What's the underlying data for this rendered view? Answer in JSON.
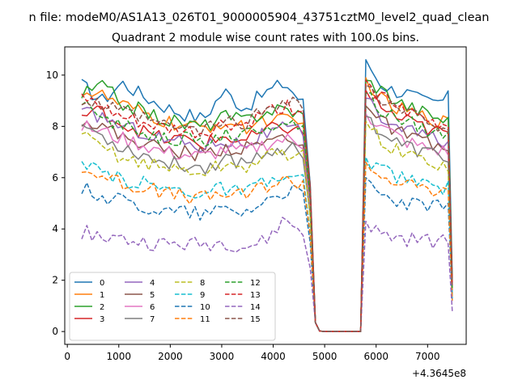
{
  "figure": {
    "suptitle": "n file: modeM0/AS1A13_026T01_9000005904_43751cztM0_level2_quad_clean"
  },
  "chart_data": {
    "type": "line",
    "title": "Quadrant 2 module wise count rates with 100.0s bins.",
    "xlabel": "",
    "ylabel": "",
    "x_offset_label": "+4.3645e8",
    "xlim": [
      -50,
      7750
    ],
    "ylim": [
      -0.5,
      11.1
    ],
    "xticks": [
      0,
      1000,
      2000,
      3000,
      4000,
      5000,
      6000,
      7000
    ],
    "xtick_labels": [
      "0",
      "1000",
      "2000",
      "3000",
      "4000",
      "5000",
      "6000",
      "7000"
    ],
    "yticks": [
      0,
      2,
      4,
      6,
      8,
      10
    ],
    "ytick_labels": [
      "0",
      "2",
      "4",
      "6",
      "8",
      "10"
    ],
    "grid": false,
    "legend": {
      "position": "lower-left",
      "columns": 4
    },
    "series": [
      {
        "name": "0",
        "color": "#1f77b4",
        "dash": "solid",
        "pre": [
          9.6,
          9.0,
          9.7,
          9.2,
          8.8,
          8.5,
          8.3,
          9.4,
          8.7,
          9.3,
          9.7,
          8.8
        ],
        "post": [
          10.6,
          9.7,
          9.4,
          9.3,
          9.0,
          8.9,
          9.1,
          2.1
        ]
      },
      {
        "name": "1",
        "color": "#ff7f0e",
        "dash": "solid",
        "pre": [
          9.4,
          9.2,
          8.8,
          8.5,
          8.2,
          8.0,
          7.9,
          8.2,
          7.9,
          8.3,
          8.2,
          8.0
        ],
        "post": [
          9.9,
          9.1,
          8.7,
          8.6,
          8.4,
          8.3,
          8.1,
          1.8
        ]
      },
      {
        "name": "2",
        "color": "#2ca02c",
        "dash": "solid",
        "pre": [
          9.2,
          9.6,
          8.9,
          8.6,
          8.3,
          8.1,
          8.0,
          8.4,
          8.2,
          8.6,
          8.7,
          8.4
        ],
        "post": [
          9.8,
          9.5,
          9.1,
          8.8,
          8.6,
          8.4,
          8.2,
          1.9
        ]
      },
      {
        "name": "3",
        "color": "#d62728",
        "dash": "solid",
        "pre": [
          8.4,
          8.6,
          8.1,
          7.8,
          7.5,
          7.5,
          7.3,
          7.6,
          7.4,
          7.8,
          8.0,
          7.7
        ],
        "post": [
          9.4,
          8.8,
          8.4,
          8.2,
          8.0,
          7.8,
          7.7,
          1.7
        ]
      },
      {
        "name": "4",
        "color": "#9467bd",
        "dash": "solid",
        "pre": [
          8.5,
          8.4,
          8.0,
          7.8,
          7.5,
          7.4,
          7.2,
          7.5,
          7.3,
          7.7,
          7.9,
          7.7
        ],
        "post": [
          9.1,
          8.4,
          8.1,
          7.9,
          7.7,
          7.5,
          7.4,
          1.6
        ]
      },
      {
        "name": "5",
        "color": "#8c564b",
        "dash": "solid",
        "pre": [
          8.3,
          8.0,
          7.6,
          7.4,
          7.1,
          7.0,
          6.9,
          7.2,
          7.1,
          7.4,
          7.6,
          7.4
        ],
        "post": [
          8.8,
          8.2,
          7.9,
          7.6,
          7.4,
          7.2,
          7.1,
          1.5
        ]
      },
      {
        "name": "6",
        "color": "#e377c2",
        "dash": "solid",
        "pre": [
          8.0,
          7.8,
          7.5,
          7.3,
          7.0,
          6.9,
          6.8,
          7.1,
          7.0,
          7.3,
          7.5,
          7.3
        ],
        "post": [
          8.5,
          8.0,
          7.7,
          7.4,
          7.2,
          7.1,
          7.0,
          1.5
        ]
      },
      {
        "name": "7",
        "color": "#7f7f7f",
        "dash": "solid",
        "pre": [
          8.1,
          7.6,
          7.2,
          6.9,
          6.6,
          6.5,
          6.4,
          6.7,
          6.6,
          7.0,
          7.2,
          7.0
        ],
        "post": [
          8.4,
          7.8,
          7.4,
          7.2,
          7.0,
          6.9,
          6.8,
          1.4
        ]
      },
      {
        "name": "8",
        "color": "#bcbd22",
        "dash": "dashed",
        "pre": [
          7.6,
          7.2,
          6.8,
          6.6,
          6.4,
          6.3,
          6.2,
          6.5,
          6.4,
          6.8,
          7.0,
          6.8
        ],
        "post": [
          8.2,
          7.5,
          7.1,
          6.9,
          6.7,
          6.6,
          6.5,
          1.4
        ]
      },
      {
        "name": "9",
        "color": "#17becf",
        "dash": "dashed",
        "pre": [
          6.4,
          6.2,
          5.9,
          5.8,
          5.6,
          5.5,
          5.4,
          5.6,
          5.4,
          5.8,
          6.0,
          5.9
        ],
        "post": [
          6.8,
          6.3,
          6.1,
          5.9,
          5.8,
          5.7,
          5.6,
          1.3
        ]
      },
      {
        "name": "10",
        "color": "#1f77b4",
        "dash": "dashed",
        "pre": [
          5.6,
          5.3,
          5.1,
          4.9,
          4.7,
          4.7,
          4.6,
          4.8,
          4.7,
          5.1,
          5.5,
          5.3
        ],
        "post": [
          6.0,
          5.3,
          5.1,
          5.0,
          4.9,
          4.9,
          4.8,
          1.2
        ]
      },
      {
        "name": "11",
        "color": "#ff7f0e",
        "dash": "dashed",
        "pre": [
          6.3,
          6.1,
          5.8,
          5.6,
          5.4,
          5.3,
          5.2,
          5.4,
          5.3,
          5.7,
          5.9,
          5.8
        ],
        "post": [
          6.6,
          6.1,
          5.9,
          5.7,
          5.6,
          5.5,
          5.4,
          1.2
        ]
      },
      {
        "name": "12",
        "color": "#2ca02c",
        "dash": "dashed",
        "pre": [
          8.8,
          8.4,
          8.0,
          7.8,
          7.6,
          7.5,
          7.4,
          7.7,
          7.6,
          8.0,
          8.2,
          8.0
        ],
        "post": [
          9.3,
          8.7,
          8.4,
          8.2,
          8.0,
          7.8,
          7.7,
          1.7
        ]
      },
      {
        "name": "13",
        "color": "#d62728",
        "dash": "dashed",
        "pre": [
          9.1,
          8.7,
          8.3,
          8.1,
          7.9,
          7.8,
          7.7,
          8.1,
          8.0,
          8.5,
          8.8,
          8.6
        ],
        "post": [
          9.8,
          9.2,
          8.8,
          8.5,
          8.3,
          8.1,
          8.0,
          1.8
        ]
      },
      {
        "name": "14",
        "color": "#9467bd",
        "dash": "dashed",
        "pre": [
          3.9,
          3.7,
          3.6,
          3.5,
          3.4,
          3.4,
          3.4,
          3.5,
          3.3,
          3.5,
          4.4,
          3.8
        ],
        "post": [
          4.3,
          3.8,
          3.7,
          3.6,
          3.6,
          3.5,
          3.5,
          0.8
        ]
      },
      {
        "name": "15",
        "color": "#8c564b",
        "dash": "dashed",
        "pre": [
          9.0,
          8.8,
          8.5,
          8.3,
          8.0,
          7.9,
          7.8,
          8.2,
          8.1,
          8.6,
          9.1,
          8.8
        ],
        "post": [
          9.6,
          9.0,
          8.7,
          8.5,
          8.3,
          8.1,
          8.0,
          1.8
        ]
      }
    ]
  }
}
